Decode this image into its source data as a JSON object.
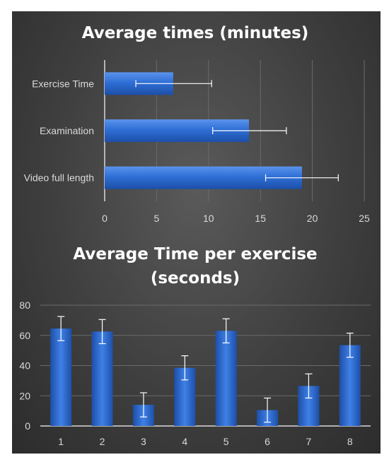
{
  "chart_data": [
    {
      "type": "bar",
      "orientation": "horizontal",
      "title": "Average times (minutes)",
      "categories": [
        "Exercise Time",
        "Examination",
        "Video full length"
      ],
      "values": [
        6.6,
        13.9,
        19.0
      ],
      "error_low": [
        3.0,
        10.4,
        15.5
      ],
      "error_high": [
        10.3,
        17.5,
        22.5
      ],
      "xlim": [
        0,
        25
      ],
      "xticks": [
        "0",
        "5",
        "10",
        "15",
        "20",
        "25"
      ],
      "grid": true,
      "bar_color": "#2f6fd6"
    },
    {
      "type": "bar",
      "orientation": "vertical",
      "title_lines": [
        "Average Time per exercise",
        "(seconds)"
      ],
      "categories": [
        "1",
        "2",
        "3",
        "4",
        "5",
        "6",
        "7",
        "8"
      ],
      "values": [
        64.5,
        62.5,
        14.0,
        38.5,
        63.0,
        10.5,
        26.5,
        53.5
      ],
      "error_low": [
        56.5,
        54.5,
        6.0,
        30.5,
        55.0,
        2.5,
        18.5,
        45.5
      ],
      "error_high": [
        72.5,
        70.5,
        22.0,
        46.5,
        71.0,
        18.5,
        34.5,
        61.5
      ],
      "ylim": [
        0,
        80
      ],
      "yticks": [
        "0",
        "20",
        "40",
        "60",
        "80"
      ],
      "grid": true,
      "bar_color": "#2f6fd6"
    }
  ]
}
